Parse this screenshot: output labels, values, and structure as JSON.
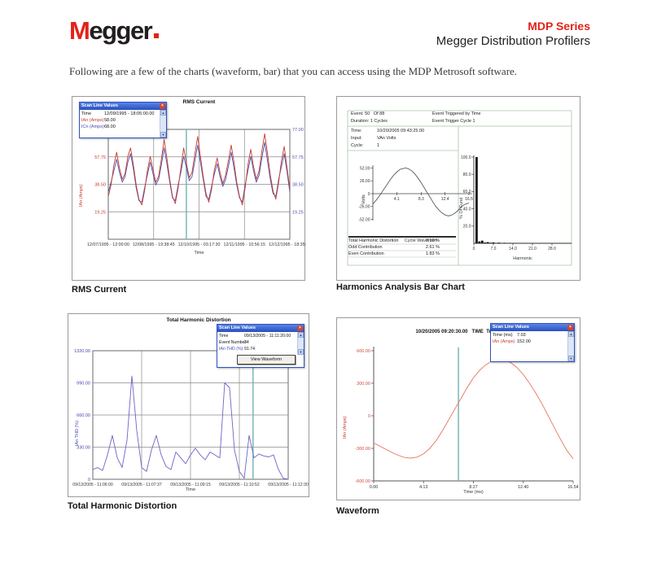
{
  "header": {
    "logo_m": "M",
    "logo_rest": "egger",
    "series": "MDP Series",
    "subtitle": "Megger Distribution Profilers"
  },
  "intro": "Following are a few of the charts (waveform, bar) that you can access using the MDP Metrosoft software.",
  "colors": {
    "brand_red": "#e2231a",
    "series_red": "#c53b2c",
    "series_blue": "#4d50b0",
    "thd_purple": "#6f62c8",
    "waveform_salmon": "#e8826b",
    "cursor_teal": "#6fb3b3"
  },
  "panels": {
    "rms": {
      "caption": "RMS Current",
      "popup": {
        "title": "Scan Line Values",
        "rows": [
          {
            "label": "Time",
            "value": "12/09/1995 - 18:05:00.00"
          },
          {
            "label": "IAn (Amps)",
            "value": "58.00"
          },
          {
            "label": "ICn (Amps)",
            "value": "68.00"
          }
        ]
      }
    },
    "harmonics": {
      "caption": "Harmonics Analysis Bar Chart",
      "event_left_1": "Event: 50   Of 88",
      "event_left_2": "Duration: 1 Cycles",
      "event_right_1": "Event Triggered by Time",
      "event_right_2": "Event Trigger Cycle 1",
      "info": [
        {
          "label": "Time:",
          "value": "10/20/2005 09:43:25.00"
        },
        {
          "label": "Input:",
          "value": "VAn Volts"
        },
        {
          "label": "Cycle:",
          "value": "1"
        }
      ],
      "stats": [
        {
          "label": "Total Harmonic Distortion",
          "value": "3.19 %"
        },
        {
          "label": "Odd Contribution",
          "value": "2.61 %"
        },
        {
          "label": "Even Contribution",
          "value": "1.83 %"
        }
      ]
    },
    "thd": {
      "caption": "Total Harmonic Distortion",
      "popup": {
        "title": "Scan Line Values",
        "rows": [
          {
            "label": "Time",
            "value": "09/13/2005 - 11:11:20.00"
          },
          {
            "label": "Event Number",
            "value": "34"
          },
          {
            "label": "IAn THD (%)",
            "value": "91.74"
          }
        ],
        "button": "View Waveform"
      }
    },
    "waveform": {
      "caption": "Waveform",
      "popup": {
        "title": "Scan Line Values",
        "rows": [
          {
            "label": "Time (ms)",
            "value": "7.03"
          },
          {
            "label": "IAn (Amps)",
            "value": "152.00"
          }
        ]
      }
    }
  },
  "chart_data": [
    {
      "id": "rms_current",
      "type": "line",
      "title": "RMS Current",
      "xlabel": "Time",
      "ylabel": "IAn (Amps)",
      "x_ticks": [
        "12/07/1995 - 12:00:00",
        "12/08/1995 - 19:38:45",
        "12/10/1995 - 03:17:30",
        "12/11/1995 - 10:56:15",
        "12/12/1995 - 18:35:00"
      ],
      "y_ticks": [
        "77.00",
        "57.75",
        "38.50",
        "19.25"
      ],
      "ylim": [
        0,
        77
      ],
      "cursor_frac": 0.43,
      "series": [
        {
          "name": "ICn (Amps)",
          "color": "#4d50b0",
          "values": [
            33,
            40,
            48,
            56,
            47,
            40,
            44,
            54,
            60,
            49,
            36,
            27,
            26,
            36,
            45,
            54,
            46,
            38,
            42,
            52,
            64,
            53,
            40,
            29,
            27,
            38,
            47,
            58,
            50,
            41,
            44,
            55,
            66,
            54,
            42,
            30,
            28,
            37,
            46,
            53,
            44,
            37,
            42,
            51,
            61,
            50,
            38,
            29,
            26,
            38,
            48,
            58,
            48,
            40,
            45,
            57,
            68,
            55,
            42,
            32,
            30,
            42,
            51,
            60,
            47,
            33
          ]
        },
        {
          "name": "IAn (Amps)",
          "color": "#c53b2c",
          "values": [
            30,
            38,
            52,
            61,
            50,
            42,
            46,
            58,
            64,
            52,
            38,
            28,
            24,
            34,
            48,
            58,
            49,
            40,
            44,
            56,
            70,
            57,
            42,
            30,
            25,
            36,
            50,
            64,
            53,
            43,
            47,
            60,
            72,
            58,
            44,
            32,
            26,
            35,
            49,
            57,
            47,
            39,
            45,
            55,
            66,
            54,
            40,
            30,
            24,
            36,
            52,
            63,
            51,
            42,
            48,
            62,
            74,
            60,
            45,
            34,
            28,
            40,
            55,
            65,
            50,
            35
          ]
        }
      ]
    },
    {
      "id": "cycle_waveform",
      "type": "line",
      "title": "Cycle Waveform",
      "xlabel": "",
      "ylabel": "Volts",
      "x_ticks": [
        "4.1",
        "8.3",
        "12.4",
        "16.5"
      ],
      "y_ticks": [
        "52.00",
        "26.00",
        "0",
        "-26.00",
        "-52.00"
      ],
      "xlim": [
        0,
        16.5
      ],
      "ylim": [
        -52,
        52
      ],
      "series": [
        {
          "name": "VAn Volts",
          "color": "#444444",
          "values": [
            -21,
            -14,
            -6,
            3,
            12,
            21,
            30,
            38,
            44,
            49,
            51,
            52,
            50,
            46,
            40,
            32,
            23,
            13,
            3,
            -7,
            -17,
            -26,
            -33,
            -39,
            -43,
            -45,
            -44,
            -41,
            -36,
            -30,
            -24,
            -21,
            -19
          ]
        }
      ]
    },
    {
      "id": "harmonic_bars",
      "type": "bar",
      "title": "",
      "xlabel": "Harmonic",
      "ylabel": "% Of Fund",
      "x_ticks": [
        "0",
        "7.0",
        "14.0",
        "21.0",
        "28.0"
      ],
      "y_ticks": [
        "100.0",
        "80.0",
        "60.0",
        "40.0",
        "20.0"
      ],
      "xlim": [
        0,
        35
      ],
      "ylim": [
        0,
        100
      ],
      "bar_color": "#151515",
      "values": [
        100,
        2.2,
        3.1,
        0.9,
        1.4,
        0.7,
        1.1,
        0.5,
        0.8,
        0.4,
        0.6,
        0.3,
        0.5,
        0.3,
        0.4,
        0.3,
        0.4,
        0.2,
        0.3,
        0.2,
        0.3,
        0.2,
        0.2,
        0.2,
        0.3,
        0.2,
        0.2,
        0.1,
        0.2,
        0.1,
        0.2,
        0.1,
        0.1,
        0.1,
        0.1
      ]
    },
    {
      "id": "total_harmonic_distortion",
      "type": "line",
      "title": "Total Harmonic Distortion",
      "xlabel": "Time",
      "ylabel": "IAn THD (%)",
      "x_ticks": [
        "09/13/2005 - 11:06:00",
        "09/13/2005 - 11:07:37",
        "09/13/2005 - 11:09:15",
        "09/13/2005 - 11:10:52",
        "09/13/2005 - 11:12:30"
      ],
      "y_ticks": [
        "1320.00",
        "990.00",
        "660.00",
        "330.00",
        "0"
      ],
      "ylim": [
        0,
        1320
      ],
      "cursor_frac": 0.82,
      "series": [
        {
          "name": "IAn THD (%)",
          "color": "#6f62c8",
          "values": [
            100,
            120,
            90,
            250,
            450,
            220,
            120,
            400,
            1060,
            500,
            120,
            80,
            300,
            450,
            250,
            130,
            100,
            280,
            220,
            160,
            250,
            320,
            250,
            200,
            280,
            250,
            220,
            990,
            940,
            300,
            80,
            10,
            450,
            220,
            260,
            240,
            230,
            250,
            100,
            10,
            0
          ]
        }
      ]
    },
    {
      "id": "waveform",
      "type": "line",
      "title": "10/20/2005 09:20:30.00   TIME  Trigger",
      "xlabel": "Time (ms)",
      "ylabel": "IAn (Amps)",
      "x_ticks": [
        "0.00",
        "4.13",
        "8.27",
        "12.40",
        "16.54"
      ],
      "y_ticks": [
        "600.00",
        "300.00",
        "0",
        "-300.00",
        "-600.00"
      ],
      "ylim": [
        -600,
        600
      ],
      "cursor_frac": 0.425,
      "series": [
        {
          "name": "IAn (Amps)",
          "color": "#e8826b",
          "values": [
            -250,
            -280,
            -310,
            -340,
            -365,
            -385,
            -390,
            -380,
            -350,
            -300,
            -230,
            -140,
            -40,
            60,
            160,
            260,
            350,
            420,
            470,
            505,
            520,
            515,
            490,
            445,
            380,
            300,
            210,
            110,
            0,
            -110,
            -220,
            -320,
            -395
          ]
        }
      ]
    }
  ]
}
